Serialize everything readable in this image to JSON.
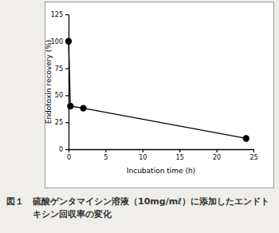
{
  "chart_data": {
    "type": "line",
    "title": "図１　硫酸ゲンタマイシン溶液（10mg/mℓ）に添加したエンドトキシン回収率の変化",
    "x_label": "Incubation time (h)",
    "y_label": "Endotoxin recovery (%)",
    "x": [
      0,
      0.25,
      2,
      24
    ],
    "values": [
      100,
      40,
      38,
      10
    ],
    "color": "#000000",
    "marker": "circle",
    "xlim": [
      0,
      25
    ],
    "xticks": [
      0,
      5,
      10,
      15,
      20,
      25
    ],
    "ylim": [
      0,
      125
    ],
    "yticks": [
      0,
      25,
      50,
      75,
      100,
      125
    ],
    "grid": false
  }
}
